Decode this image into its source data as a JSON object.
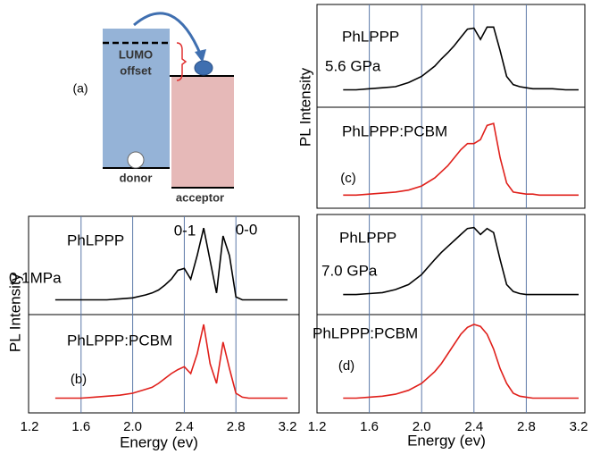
{
  "diagram": {
    "label": "(a)",
    "lumo": "LUMO",
    "offset": "offset",
    "donor": "donor",
    "acceptor": "acceptor"
  },
  "chart_data": [
    {
      "type": "line",
      "panel_label": "(b)",
      "condition": "0.1MPa",
      "annotations": [
        "0-1",
        "0-0"
      ],
      "x": [
        1.4,
        1.5,
        1.6,
        1.7,
        1.8,
        1.9,
        2.0,
        2.1,
        2.15,
        2.2,
        2.25,
        2.3,
        2.35,
        2.4,
        2.45,
        2.5,
        2.55,
        2.6,
        2.65,
        2.7,
        2.75,
        2.8,
        2.85,
        2.9,
        3.0,
        3.1,
        3.2
      ],
      "xlim": [
        1.2,
        3.2
      ],
      "xticks": [
        1.2,
        1.6,
        {
          "value": 2,
          "label": "2.0"
        },
        2.4,
        2.8,
        3.2
      ],
      "tick_labels": true,
      "grid": true,
      "xlabel": "Energy (ev)",
      "ylabel": "PL Intensity",
      "ylim": [
        0,
        1
      ],
      "series": [
        {
          "name": "PhLPPP",
          "color": "#000000",
          "values": [
            0.15,
            0.15,
            0.15,
            0.15,
            0.15,
            0.16,
            0.17,
            0.2,
            0.22,
            0.25,
            0.3,
            0.36,
            0.45,
            0.47,
            0.36,
            0.6,
            0.88,
            0.55,
            0.22,
            0.8,
            0.6,
            0.18,
            0.15,
            0.15,
            0.15,
            0.15,
            0.15
          ]
        },
        {
          "name": "PhLPPP:PCBM",
          "color": "#e0201b",
          "values": [
            0.15,
            0.15,
            0.15,
            0.16,
            0.17,
            0.18,
            0.2,
            0.24,
            0.26,
            0.3,
            0.35,
            0.4,
            0.44,
            0.47,
            0.4,
            0.6,
            0.9,
            0.5,
            0.3,
            0.72,
            0.45,
            0.2,
            0.16,
            0.15,
            0.15,
            0.15,
            0.15
          ]
        }
      ]
    },
    {
      "type": "line",
      "panel_label": "(c)",
      "condition": "5.6 GPa",
      "x": [
        1.4,
        1.5,
        1.6,
        1.7,
        1.8,
        1.9,
        2.0,
        2.1,
        2.15,
        2.2,
        2.25,
        2.3,
        2.35,
        2.4,
        2.45,
        2.5,
        2.55,
        2.6,
        2.65,
        2.7,
        2.75,
        2.8,
        2.85,
        2.9,
        3.0,
        3.1,
        3.2
      ],
      "xlim": [
        1.2,
        3.2
      ],
      "xticks": [
        1.2,
        1.6,
        {
          "value": 2,
          "label": "2.0"
        },
        2.4,
        2.8,
        3.2
      ],
      "tick_labels": false,
      "grid": true,
      "ylabel": "PL Intensity",
      "ylim": [
        0,
        1
      ],
      "series": [
        {
          "name": "PhLPPP",
          "color": "#000000",
          "values": [
            0.17,
            0.17,
            0.18,
            0.19,
            0.2,
            0.24,
            0.3,
            0.4,
            0.47,
            0.53,
            0.6,
            0.68,
            0.76,
            0.77,
            0.66,
            0.78,
            0.78,
            0.55,
            0.3,
            0.22,
            0.2,
            0.19,
            0.18,
            0.18,
            0.18,
            0.17,
            0.17
          ]
        },
        {
          "name": "PhLPPP:PCBM",
          "color": "#e0201b",
          "values": [
            0.13,
            0.13,
            0.14,
            0.15,
            0.16,
            0.18,
            0.22,
            0.3,
            0.36,
            0.42,
            0.5,
            0.58,
            0.64,
            0.64,
            0.68,
            0.82,
            0.84,
            0.5,
            0.25,
            0.16,
            0.15,
            0.14,
            0.14,
            0.13,
            0.13,
            0.13,
            0.13
          ]
        }
      ]
    },
    {
      "type": "line",
      "panel_label": "(d)",
      "condition": "7.0 GPa",
      "x": [
        1.4,
        1.5,
        1.6,
        1.7,
        1.8,
        1.9,
        2.0,
        2.1,
        2.15,
        2.2,
        2.25,
        2.3,
        2.35,
        2.4,
        2.45,
        2.5,
        2.55,
        2.6,
        2.65,
        2.7,
        2.75,
        2.8,
        2.85,
        2.9,
        3.0,
        3.1,
        3.2
      ],
      "xlim": [
        1.2,
        3.2
      ],
      "xticks": [
        1.2,
        1.6,
        {
          "value": 2,
          "label": "2.0"
        },
        2.4,
        2.8,
        3.2
      ],
      "tick_labels": true,
      "grid": true,
      "xlabel": "Energy (ev)",
      "ylim": [
        0,
        1
      ],
      "series": [
        {
          "name": "PhLPPP",
          "color": "#000000",
          "values": [
            0.2,
            0.2,
            0.21,
            0.22,
            0.25,
            0.3,
            0.4,
            0.55,
            0.62,
            0.68,
            0.74,
            0.8,
            0.86,
            0.87,
            0.8,
            0.86,
            0.82,
            0.55,
            0.3,
            0.23,
            0.21,
            0.2,
            0.2,
            0.2,
            0.2,
            0.2,
            0.2
          ]
        },
        {
          "name": "PhLPPP:PCBM",
          "color": "#e0201b",
          "values": [
            0.15,
            0.15,
            0.16,
            0.17,
            0.19,
            0.23,
            0.3,
            0.42,
            0.5,
            0.6,
            0.7,
            0.8,
            0.87,
            0.9,
            0.88,
            0.8,
            0.65,
            0.45,
            0.3,
            0.2,
            0.17,
            0.16,
            0.15,
            0.15,
            0.15,
            0.15,
            0.15
          ]
        }
      ]
    }
  ]
}
